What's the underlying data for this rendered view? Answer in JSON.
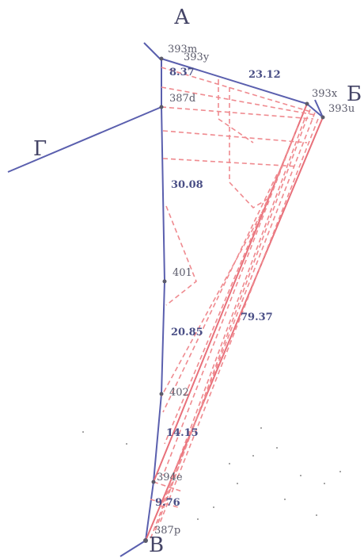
{
  "corners": [
    {
      "id": "A",
      "text": "А"
    },
    {
      "id": "B",
      "text": "Б"
    },
    {
      "id": "V",
      "text": "В"
    },
    {
      "id": "G",
      "text": "Г"
    }
  ],
  "points": [
    {
      "id": "p393m",
      "text": "393m"
    },
    {
      "id": "p393y",
      "text": "393y"
    },
    {
      "id": "p393x",
      "text": "393x"
    },
    {
      "id": "p393u",
      "text": "393u"
    },
    {
      "id": "p387d",
      "text": "387d"
    },
    {
      "id": "p401",
      "text": "401"
    },
    {
      "id": "p402",
      "text": "402"
    },
    {
      "id": "p394e",
      "text": "394e"
    },
    {
      "id": "p387p",
      "text": "387p"
    }
  ],
  "dimensions": [
    {
      "id": "d1",
      "text": "8.37"
    },
    {
      "id": "d2",
      "text": "23.12"
    },
    {
      "id": "d3",
      "text": "30.08"
    },
    {
      "id": "d4",
      "text": "20.85"
    },
    {
      "id": "d5",
      "text": "79.37"
    },
    {
      "id": "d6",
      "text": "14.15"
    },
    {
      "id": "d7",
      "text": "9.76"
    }
  ],
  "colors": {
    "boundary": "#5a5fae",
    "survey_edge": "#e8707a",
    "survey_dashed": "#ef8a8f"
  }
}
